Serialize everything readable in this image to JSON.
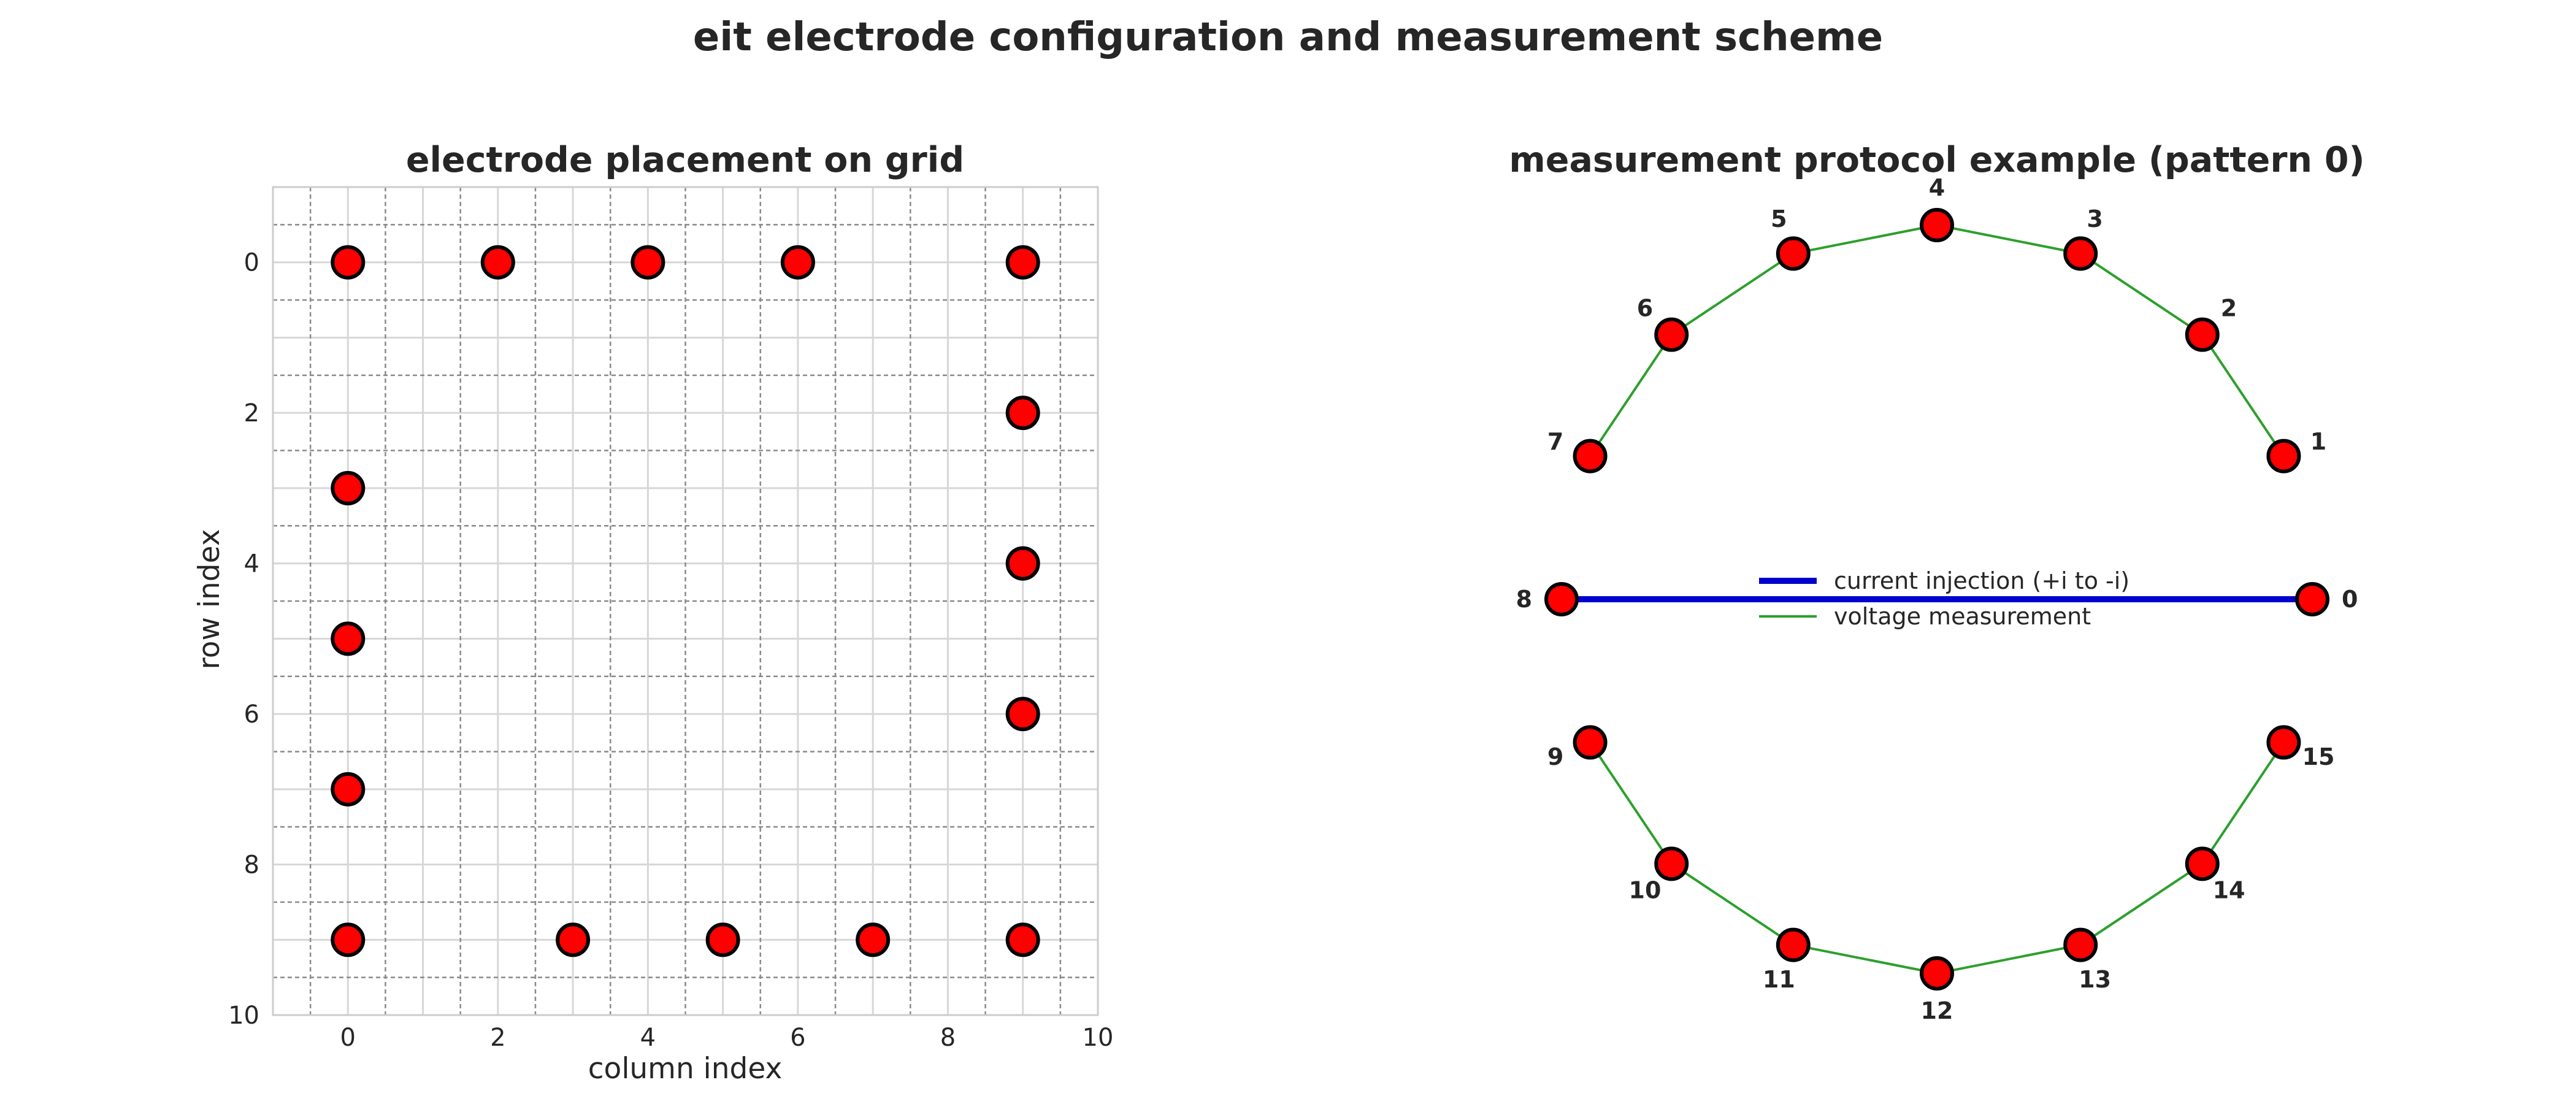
{
  "figure": {
    "title": "eit electrode configuration and measurement scheme"
  },
  "chart_data": [
    {
      "type": "scatter",
      "title": "electrode placement on grid",
      "xlabel": "column index",
      "ylabel": "row index",
      "xlim": [
        -1,
        10
      ],
      "ylim": [
        10,
        -1
      ],
      "y_inverted": true,
      "xticks": [
        0,
        2,
        4,
        6,
        8,
        10
      ],
      "yticks": [
        0,
        2,
        4,
        6,
        8,
        10
      ],
      "grid": true,
      "cell_grid_lines": [
        -0.5,
        0.5,
        1.5,
        2.5,
        3.5,
        4.5,
        5.5,
        6.5,
        7.5,
        8.5,
        9.5
      ],
      "marker_color": "#ff0000",
      "marker_edge_color": "#000000",
      "electrodes": [
        {
          "col": 0,
          "row": 0
        },
        {
          "col": 2,
          "row": 0
        },
        {
          "col": 4,
          "row": 0
        },
        {
          "col": 6,
          "row": 0
        },
        {
          "col": 9,
          "row": 0
        },
        {
          "col": 9,
          "row": 2
        },
        {
          "col": 9,
          "row": 4
        },
        {
          "col": 9,
          "row": 6
        },
        {
          "col": 9,
          "row": 9
        },
        {
          "col": 7,
          "row": 9
        },
        {
          "col": 5,
          "row": 9
        },
        {
          "col": 3,
          "row": 9
        },
        {
          "col": 0,
          "row": 9
        },
        {
          "col": 0,
          "row": 7
        },
        {
          "col": 0,
          "row": 5
        },
        {
          "col": 0,
          "row": 3
        }
      ]
    },
    {
      "type": "diagram",
      "title": "measurement protocol example (pattern 0)",
      "electrode_count": 16,
      "electrode_labels": [
        "0",
        "1",
        "2",
        "3",
        "4",
        "5",
        "6",
        "7",
        "8",
        "9",
        "10",
        "11",
        "12",
        "13",
        "14",
        "15"
      ],
      "marker_color": "#ff0000",
      "marker_edge_color": "#000000",
      "current_injection": {
        "from": 0,
        "to": 8,
        "color": "#0000cc"
      },
      "voltage_measurement": {
        "color": "#2ca02c",
        "pairs": [
          [
            1,
            2
          ],
          [
            2,
            3
          ],
          [
            3,
            4
          ],
          [
            4,
            5
          ],
          [
            5,
            6
          ],
          [
            6,
            7
          ],
          [
            9,
            10
          ],
          [
            10,
            11
          ],
          [
            11,
            12
          ],
          [
            12,
            13
          ],
          [
            13,
            14
          ],
          [
            14,
            15
          ]
        ]
      },
      "legend": {
        "placement": "center",
        "entries": [
          {
            "label": "current injection (+i to -i)",
            "color": "#0000cc"
          },
          {
            "label": "voltage measurement",
            "color": "#2ca02c"
          }
        ]
      }
    }
  ]
}
